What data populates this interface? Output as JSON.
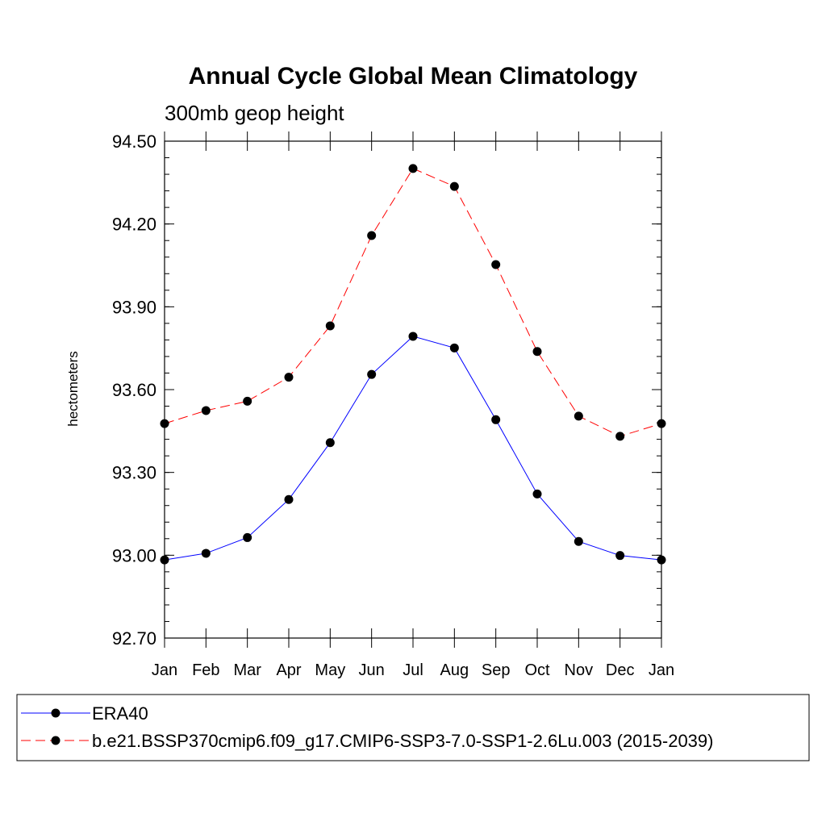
{
  "chart_data": {
    "type": "line",
    "title": "Annual Cycle Global Mean Climatology",
    "subtitle": "300mb geop height",
    "ylabel": "hectometers",
    "xlabel": "",
    "categories": [
      "Jan",
      "Feb",
      "Mar",
      "Apr",
      "May",
      "Jun",
      "Jul",
      "Aug",
      "Sep",
      "Oct",
      "Nov",
      "Dec",
      "Jan"
    ],
    "ylim": [
      92.7,
      94.5
    ],
    "yticks": [
      "92.70",
      "93.00",
      "93.30",
      "93.60",
      "93.90",
      "94.20",
      "94.50"
    ],
    "grid": false,
    "legend_position": "bottom",
    "series": [
      {
        "name": "ERA40",
        "color": "#0000ff",
        "line_style": "solid",
        "marker": "filled-circle",
        "values": [
          92.983,
          93.007,
          93.064,
          93.202,
          93.408,
          93.655,
          93.793,
          93.751,
          93.491,
          93.222,
          93.05,
          92.999,
          92.983
        ]
      },
      {
        "name": "b.e21.BSSP370cmip6.f09_g17.CMIP6-SSP3-7.0-SSP1-2.6Lu.003 (2015-2039)",
        "color": "#ff0000",
        "line_style": "dashed",
        "marker": "filled-circle",
        "values": [
          93.477,
          93.524,
          93.558,
          93.645,
          93.831,
          94.158,
          94.401,
          94.336,
          94.053,
          93.738,
          93.504,
          93.431,
          93.477
        ]
      }
    ]
  }
}
